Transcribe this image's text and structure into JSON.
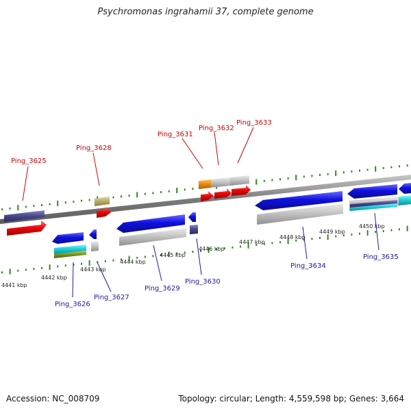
{
  "title": "Psychromonas ingrahamii 37, complete genome",
  "footer": {
    "accession": "Accession: NC_008709",
    "summary": "Topology: circular; Length: 4,559,598 bp; Genes: 3,664"
  },
  "colors": {
    "backbone": "#8a8a8a",
    "tick": "#2a8a1a",
    "forward_label": "#cc0000",
    "reverse_label": "#1a1aa0",
    "blue": "#1010e0",
    "red": "#ee0a0a",
    "navy": "#4a4a90",
    "gray": "#c4c4c4",
    "olive": "#b8b070",
    "orange": "#f08a10",
    "cyan": "#20d0d8",
    "green": "#7a9a20"
  },
  "kbp_labels": [
    "4441 kbp",
    "4442 kbp",
    "4443 kbp",
    "4444 kbp",
    "4445 kbp",
    "4446 kbp",
    "4447 kbp",
    "4448 kbp",
    "4449 kbp",
    "4450 kbp"
  ],
  "forward_genes": [
    "Ping_3625",
    "Ping_3628",
    "Ping_3631",
    "Ping_3632",
    "Ping_3633"
  ],
  "reverse_genes": [
    "Ping_3626",
    "Ping_3627",
    "Ping_3629",
    "Ping_3630",
    "Ping_3634",
    "Ping_3635"
  ]
}
